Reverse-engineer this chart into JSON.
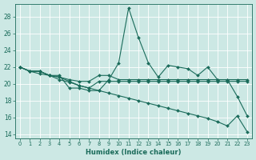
{
  "xlabel": "Humidex (Indice chaleur)",
  "xlim": [
    -0.5,
    23.5
  ],
  "ylim": [
    13.5,
    29.5
  ],
  "yticks": [
    14,
    16,
    18,
    20,
    22,
    24,
    26,
    28
  ],
  "xticks": [
    0,
    1,
    2,
    3,
    4,
    5,
    6,
    7,
    8,
    9,
    10,
    11,
    12,
    13,
    14,
    15,
    16,
    17,
    18,
    19,
    20,
    21,
    22,
    23
  ],
  "bg_color": "#cce8e4",
  "line_color": "#1a6b5a",
  "lines": [
    {
      "x": [
        0,
        1,
        2,
        3,
        4,
        5,
        6,
        7,
        8,
        9,
        10,
        11,
        12,
        13,
        14,
        15,
        16,
        17,
        18,
        19,
        20,
        21,
        22,
        23
      ],
      "y": [
        22,
        21.5,
        21.5,
        21,
        21,
        19.5,
        19.5,
        19.2,
        19.2,
        20.5,
        22.5,
        29,
        25.5,
        22.5,
        20.8,
        22.2,
        22,
        21.8,
        21,
        22,
        20.5,
        20.5,
        18.5,
        16.2
      ]
    },
    {
      "x": [
        0,
        1,
        2,
        3,
        4,
        5,
        6,
        7,
        8,
        9,
        10,
        11,
        12,
        13,
        14,
        15,
        16,
        17,
        18,
        19,
        20,
        21,
        22,
        23
      ],
      "y": [
        22,
        21.5,
        21.5,
        21,
        20.8,
        20.5,
        20.3,
        20.3,
        21,
        21,
        20.5,
        20.5,
        20.5,
        20.5,
        20.5,
        20.5,
        20.5,
        20.5,
        20.5,
        20.5,
        20.5,
        20.5,
        20.5,
        20.5
      ]
    },
    {
      "x": [
        0,
        1,
        2,
        3,
        4,
        5,
        6,
        7,
        8,
        9,
        10,
        11,
        12,
        13,
        14,
        15,
        16,
        17,
        18,
        19,
        20,
        21,
        22,
        23
      ],
      "y": [
        22,
        21.5,
        21.5,
        21,
        20.8,
        20.3,
        19.8,
        19.5,
        20.3,
        20.3,
        20.3,
        20.3,
        20.3,
        20.3,
        20.3,
        20.3,
        20.3,
        20.3,
        20.3,
        20.3,
        20.3,
        20.3,
        20.3,
        20.3
      ]
    },
    {
      "x": [
        0,
        1,
        2,
        3,
        4,
        5,
        6,
        7,
        8,
        9,
        10,
        11,
        12,
        13,
        14,
        15,
        16,
        17,
        18,
        19,
        20,
        21,
        22,
        23
      ],
      "y": [
        22,
        21.5,
        21.2,
        21,
        20.5,
        20.2,
        19.8,
        19.5,
        19.2,
        18.9,
        18.6,
        18.3,
        18.0,
        17.7,
        17.4,
        17.1,
        16.8,
        16.5,
        16.2,
        15.9,
        15.5,
        15.0,
        16.2,
        14.3
      ]
    }
  ]
}
